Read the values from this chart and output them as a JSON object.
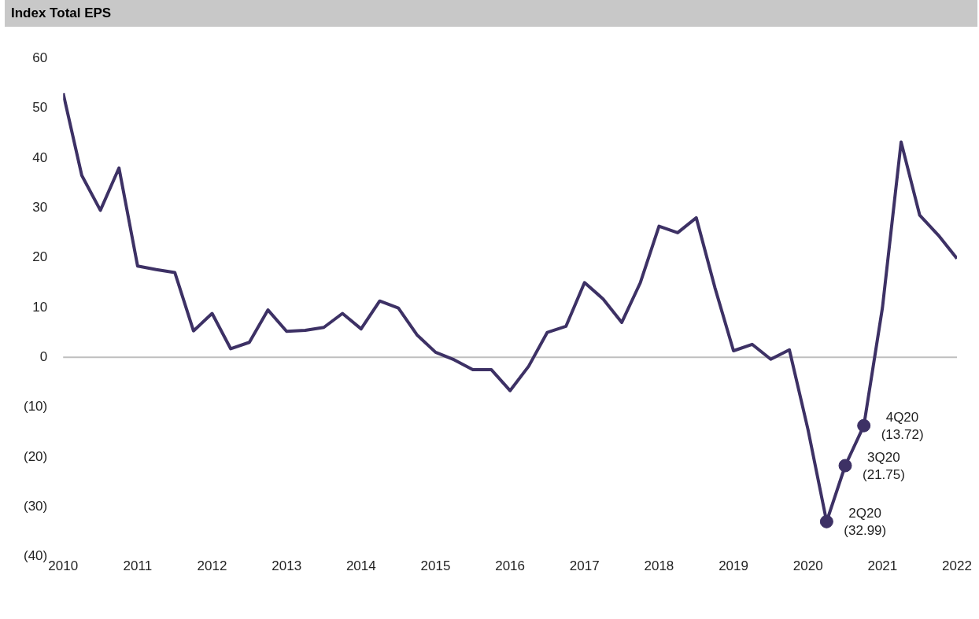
{
  "chart_data": {
    "type": "line",
    "title": "Index Total EPS",
    "xlim": [
      2010,
      2022
    ],
    "xticks": [
      2010,
      2011,
      2012,
      2013,
      2014,
      2015,
      2016,
      2017,
      2018,
      2019,
      2020,
      2021,
      2022
    ],
    "ylim": [
      -40,
      60
    ],
    "yticks": [
      {
        "value": -40,
        "label": "(40)"
      },
      {
        "value": -30,
        "label": "(30)"
      },
      {
        "value": -20,
        "label": "(20)"
      },
      {
        "value": -10,
        "label": "(10)"
      },
      0,
      10,
      20,
      30,
      40,
      50,
      60
    ],
    "grid": false,
    "legend": false,
    "marker": "none",
    "line_style": "solid",
    "series": [
      {
        "color": "#3d3165",
        "x": [
          2010,
          2010.25,
          2010.5,
          2010.75,
          2011,
          2011.25,
          2011.5,
          2011.75,
          2012,
          2012.25,
          2012.5,
          2012.75,
          2013,
          2013.25,
          2013.5,
          2013.75,
          2014,
          2014.25,
          2014.5,
          2014.75,
          2015,
          2015.25,
          2015.5,
          2015.75,
          2016,
          2016.25,
          2016.5,
          2016.75,
          2017,
          2017.25,
          2017.5,
          2017.75,
          2018,
          2018.25,
          2018.5,
          2018.75,
          2019,
          2019.25,
          2019.5,
          2019.75,
          2020,
          2020.25,
          2020.5,
          2020.75,
          2021,
          2021.25,
          2021.5,
          2021.75,
          2022
        ],
        "values": [
          53,
          36.5,
          29.5,
          38,
          18.3,
          17.6,
          17,
          5.3,
          8.8,
          1.7,
          3,
          9.5,
          5.2,
          5.4,
          6,
          8.8,
          5.7,
          11.3,
          9.9,
          4.5,
          1,
          -0.5,
          -2.5,
          -2.5,
          -6.7,
          -1.8,
          5,
          6.2,
          15,
          11.7,
          7,
          15,
          26.3,
          25,
          28,
          14,
          1.3,
          2.6,
          -0.4,
          1.5,
          -14.5,
          -32.99,
          -21.75,
          -13.72,
          10,
          43.2,
          28.5,
          24.5,
          19.8
        ]
      },
      {
        "type": "scatter",
        "color": "#3d3165",
        "marker": "circle",
        "x": [
          2020.25,
          2020.5,
          2020.75
        ],
        "values": [
          -32.99,
          -21.75,
          -13.72
        ]
      }
    ],
    "ref_lines": [
      {
        "axis": "y",
        "value": 0,
        "color": "#bfbfbf"
      }
    ],
    "annotations": [
      {
        "text": "2Q20\n(32.99)",
        "x": 2020.25,
        "y": -32.99
      },
      {
        "text": "3Q20\n(21.75)",
        "x": 2020.5,
        "y": -21.75
      },
      {
        "text": "4Q20\n(13.72)",
        "x": 2020.75,
        "y": -13.72
      }
    ]
  }
}
